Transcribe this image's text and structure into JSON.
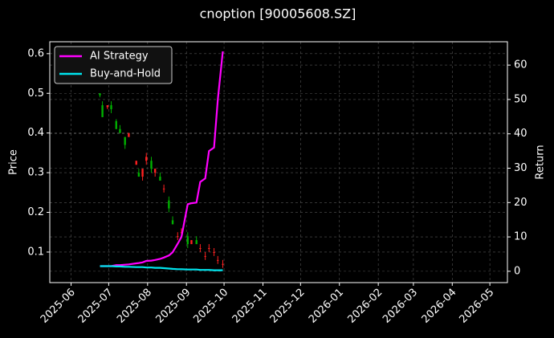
{
  "chart_data": {
    "type": "candlestick",
    "title": "cnoption [90005608.SZ]",
    "y_label": "Price",
    "y2_label": "Return",
    "x": [
      "2025-06-24",
      "2025-06-26",
      "2025-06-30",
      "2025-07-03",
      "2025-07-07",
      "2025-07-10",
      "2025-07-14",
      "2025-07-17",
      "2025-07-23",
      "2025-07-25",
      "2025-07-28",
      "2025-07-31",
      "2025-08-04",
      "2025-08-07",
      "2025-08-11",
      "2025-08-14",
      "2025-08-18",
      "2025-08-21",
      "2025-08-25",
      "2025-08-28",
      "2025-09-02",
      "2025-09-05",
      "2025-09-09",
      "2025-09-12",
      "2025-09-16",
      "2025-09-19",
      "2025-09-23",
      "2025-09-26",
      "2025-09-30"
    ],
    "open": [
      0.5,
      0.47,
      0.465,
      0.47,
      0.43,
      0.41,
      0.39,
      0.39,
      0.32,
      0.3,
      0.29,
      0.33,
      0.33,
      0.3,
      0.29,
      0.26,
      0.23,
      0.18,
      0.14,
      0.15,
      0.14,
      0.12,
      0.13,
      0.11,
      0.09,
      0.11,
      0.1,
      0.08,
      0.07
    ],
    "high": [
      0.5,
      0.48,
      0.47,
      0.48,
      0.435,
      0.42,
      0.39,
      0.4,
      0.33,
      0.31,
      0.31,
      0.35,
      0.34,
      0.31,
      0.3,
      0.27,
      0.24,
      0.19,
      0.15,
      0.16,
      0.15,
      0.13,
      0.14,
      0.12,
      0.1,
      0.12,
      0.11,
      0.09,
      0.08
    ],
    "low": [
      0.49,
      0.44,
      0.46,
      0.45,
      0.41,
      0.4,
      0.36,
      0.39,
      0.32,
      0.29,
      0.28,
      0.32,
      0.3,
      0.29,
      0.28,
      0.25,
      0.2,
      0.17,
      0.13,
      0.14,
      0.11,
      0.12,
      0.12,
      0.1,
      0.08,
      0.1,
      0.09,
      0.07,
      0.06
    ],
    "close": [
      0.495,
      0.44,
      0.47,
      0.46,
      0.41,
      0.4,
      0.37,
      0.4,
      0.33,
      0.29,
      0.31,
      0.34,
      0.31,
      0.31,
      0.28,
      0.26,
      0.21,
      0.17,
      0.14,
      0.15,
      0.12,
      0.13,
      0.12,
      0.11,
      0.09,
      0.11,
      0.1,
      0.08,
      0.07
    ],
    "up_color": "#ff2020",
    "down_color": "#00b000",
    "series": [
      {
        "name": "AI Strategy",
        "color": "#ff00ff",
        "axis": "y2",
        "values": [
          1.5,
          1.5,
          1.5,
          1.5,
          1.8,
          1.8,
          1.9,
          2.0,
          2.3,
          2.4,
          2.6,
          3.0,
          3.1,
          3.3,
          3.6,
          4.0,
          4.6,
          5.5,
          8,
          10,
          19.5,
          19.8,
          20,
          26,
          27,
          35,
          36,
          50,
          64
        ]
      },
      {
        "name": "Buy-and-Hold",
        "color": "#00e5ee",
        "axis": "y2",
        "values": [
          1.5,
          1.5,
          1.5,
          1.5,
          1.4,
          1.4,
          1.3,
          1.3,
          1.2,
          1.2,
          1.2,
          1.1,
          1.1,
          1.0,
          1.0,
          0.9,
          0.8,
          0.7,
          0.6,
          0.6,
          0.5,
          0.5,
          0.5,
          0.4,
          0.4,
          0.4,
          0.3,
          0.3,
          0.3
        ]
      }
    ],
    "xlim": [
      "2025-05-15",
      "2026-05-15"
    ],
    "xticks": [
      "2025-06",
      "2025-07",
      "2025-08",
      "2025-09",
      "2025-10",
      "2025-11",
      "2025-12",
      "2026-01",
      "2026-02",
      "2026-03",
      "2026-04",
      "2026-05"
    ],
    "ylim": [
      0.023,
      0.63
    ],
    "yticks": [
      0.1,
      0.2,
      0.3,
      0.4,
      0.5,
      0.6
    ],
    "y2lim": [
      -3.3,
      66.8
    ],
    "y2ticks": [
      0,
      10,
      20,
      30,
      40,
      50,
      60
    ],
    "grid": true,
    "legend": "upper-left"
  }
}
